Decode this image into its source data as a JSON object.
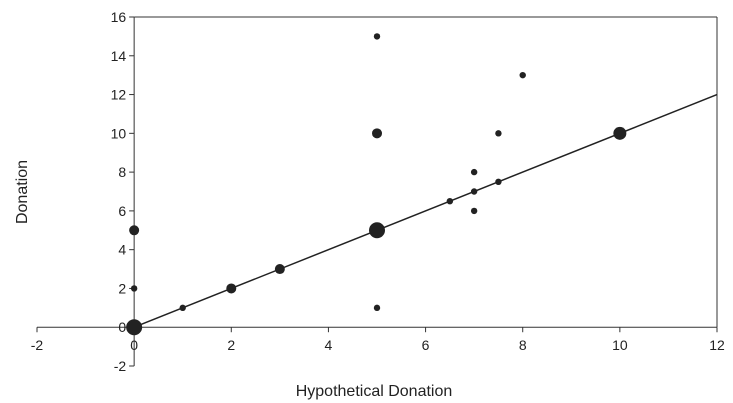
{
  "chart_data": {
    "type": "scatter",
    "xlabel": "Hypothetical Donation",
    "ylabel": "Donation",
    "xlim": [
      -2,
      12
    ],
    "ylim": [
      -2,
      16
    ],
    "x_ticks": [
      "-2",
      "0",
      "2",
      "4",
      "6",
      "8",
      "10",
      "12"
    ],
    "y_ticks": [
      "-2",
      "0",
      "2",
      "4",
      "6",
      "8",
      "10",
      "12",
      "14",
      "16"
    ],
    "grid": false,
    "legend": "none",
    "marker_color": "#222222",
    "line_color": "#222222",
    "points": [
      {
        "x": 0,
        "y": 0,
        "size": "largest"
      },
      {
        "x": 0,
        "y": 2,
        "size": "small"
      },
      {
        "x": 0,
        "y": 5,
        "size": "medium"
      },
      {
        "x": 1,
        "y": 1,
        "size": "small"
      },
      {
        "x": 2,
        "y": 2,
        "size": "medium"
      },
      {
        "x": 3,
        "y": 3,
        "size": "medium"
      },
      {
        "x": 5,
        "y": 1,
        "size": "small"
      },
      {
        "x": 5,
        "y": 5,
        "size": "largest"
      },
      {
        "x": 5,
        "y": 10,
        "size": "medium"
      },
      {
        "x": 5,
        "y": 15,
        "size": "small"
      },
      {
        "x": 6.5,
        "y": 6.5,
        "size": "small"
      },
      {
        "x": 7,
        "y": 6,
        "size": "small"
      },
      {
        "x": 7,
        "y": 7,
        "size": "small"
      },
      {
        "x": 7,
        "y": 8,
        "size": "small"
      },
      {
        "x": 7.5,
        "y": 7.5,
        "size": "small"
      },
      {
        "x": 7.5,
        "y": 10,
        "size": "small"
      },
      {
        "x": 8,
        "y": 13,
        "size": "small"
      },
      {
        "x": 10,
        "y": 10,
        "size": "large"
      }
    ],
    "reference_line": {
      "x": [
        0,
        12
      ],
      "y": [
        0,
        12
      ]
    }
  }
}
